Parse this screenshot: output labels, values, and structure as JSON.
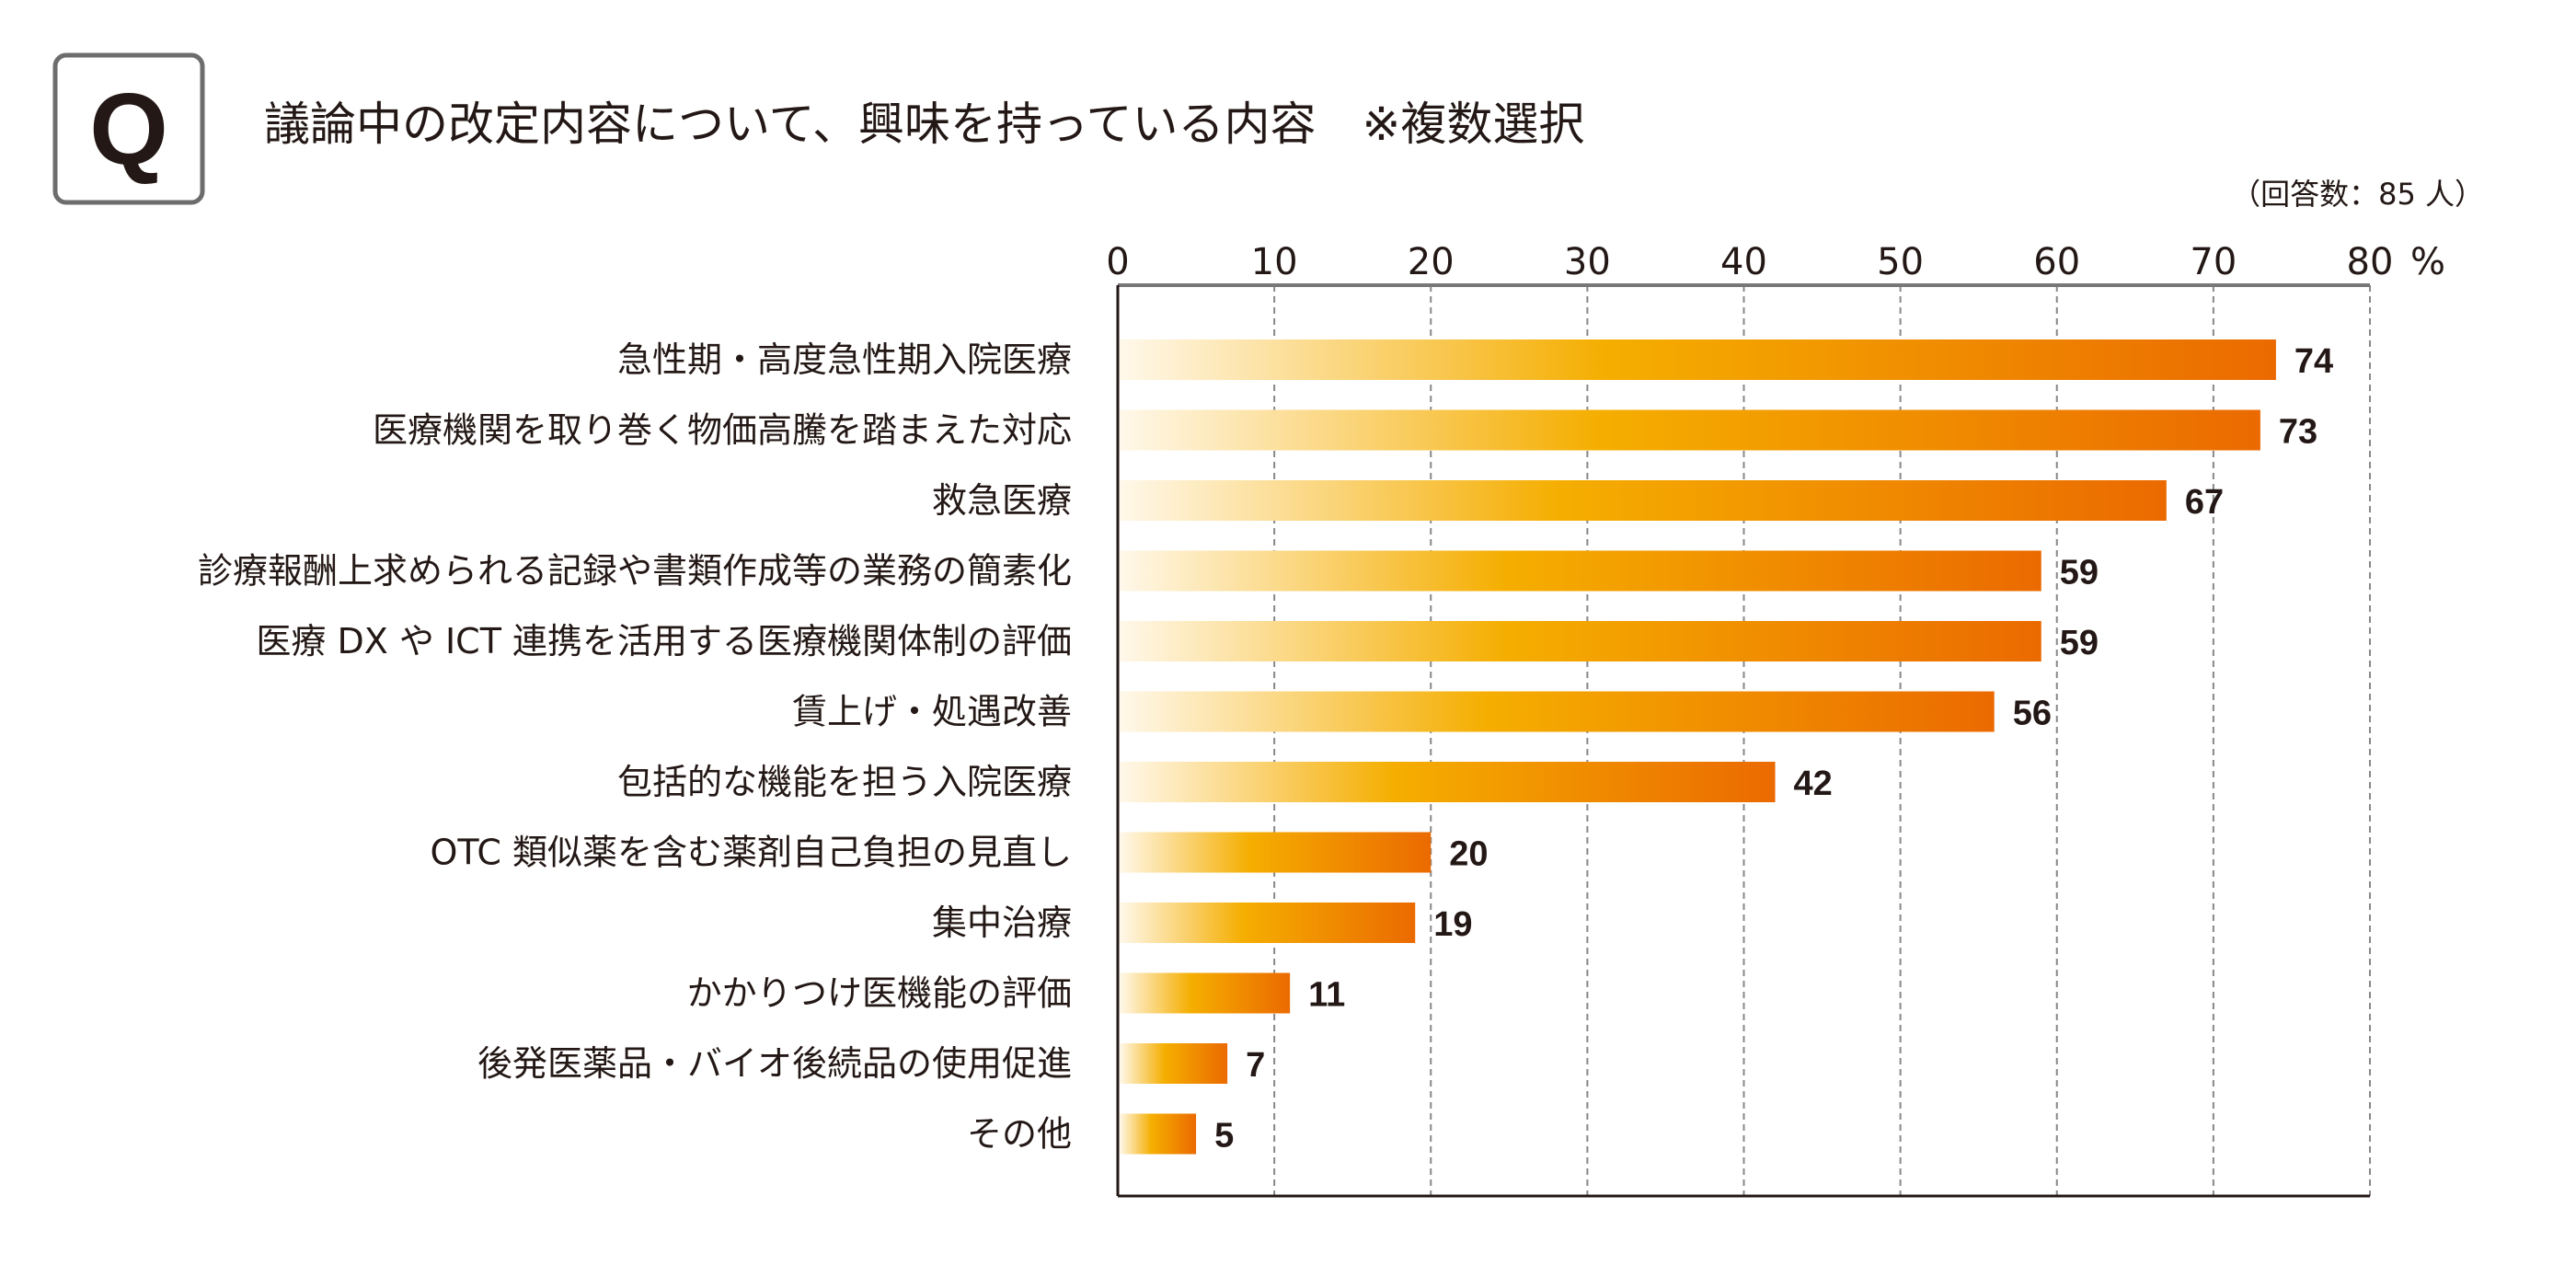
{
  "header": {
    "q_badge": "Q",
    "title": "議論中の改定内容について、興味を持っている内容　※複数選択",
    "respondents": "（回答数：85 人）"
  },
  "chart_data": {
    "type": "bar",
    "orientation": "horizontal",
    "title": "議論中の改定内容について、興味を持っている内容　※複数選択",
    "xlabel": "%",
    "ylabel": "",
    "xlim": [
      0,
      80
    ],
    "xticks": [
      0,
      10,
      20,
      30,
      40,
      50,
      60,
      70,
      80
    ],
    "x_unit": "%",
    "grid": true,
    "categories": [
      "急性期・高度急性期入院医療",
      "医療機関を取り巻く物価高騰を踏まえた対応",
      "救急医療",
      "診療報酬上求められる記録や書類作成等の業務の簡素化",
      "医療 DX や ICT 連携を活用する医療機関体制の評価",
      "賃上げ・処遇改善",
      "包括的な機能を担う入院医療",
      "OTC 類似薬を含む薬剤自己負担の見直し",
      "集中治療",
      "かかりつけ医機能の評価",
      "後発医薬品・バイオ後続品の使用促進",
      "その他"
    ],
    "values": [
      74,
      73,
      67,
      59,
      59,
      56,
      42,
      20,
      19,
      11,
      7,
      5
    ],
    "colors": {
      "start": "#fff8ea",
      "mid": "#f5ae00",
      "end": "#eb6a00"
    }
  }
}
